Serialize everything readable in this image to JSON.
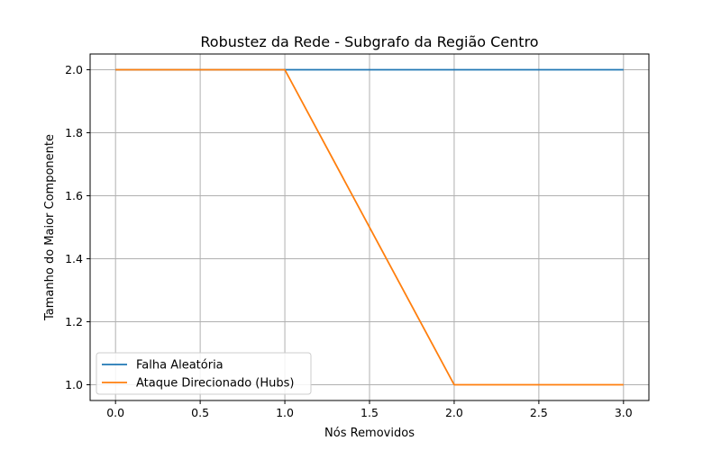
{
  "chart_data": {
    "type": "line",
    "title": "Robustez da Rede - Subgrafo da Região Centro",
    "xlabel": "Nós Removidos",
    "ylabel": "Tamanho do Maior Componente",
    "x": [
      0,
      1,
      2,
      3
    ],
    "xlim": [
      -0.15,
      3.15
    ],
    "ylim": [
      0.95,
      2.05
    ],
    "xticks": [
      0.0,
      0.5,
      1.0,
      1.5,
      2.0,
      2.5,
      3.0
    ],
    "xtick_labels": [
      "0.0",
      "0.5",
      "1.0",
      "1.5",
      "2.0",
      "2.5",
      "3.0"
    ],
    "yticks": [
      1.0,
      1.2,
      1.4,
      1.6,
      1.8,
      2.0
    ],
    "ytick_labels": [
      "1.0",
      "1.2",
      "1.4",
      "1.6",
      "1.8",
      "2.0"
    ],
    "grid": true,
    "legend_position": "lower-left",
    "series": [
      {
        "name": "Falha Aleatória",
        "values": [
          2,
          2,
          2,
          2
        ],
        "color": "#1f77b4"
      },
      {
        "name": "Ataque Direcionado (Hubs)",
        "values": [
          2,
          2,
          1,
          1
        ],
        "color": "#ff7f0e"
      }
    ]
  }
}
